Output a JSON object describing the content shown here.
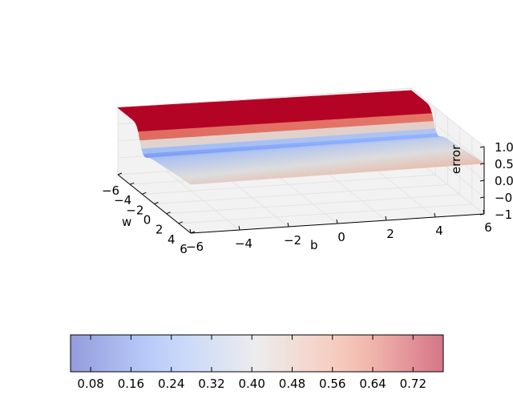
{
  "chart_data": {
    "type": "surface3d",
    "title": "",
    "xlabel": "w",
    "ylabel": "b",
    "zlabel": "error",
    "xlim": [
      -6,
      6
    ],
    "ylim": [
      -6,
      6
    ],
    "zlim": [
      -1.0,
      1.0
    ],
    "x_ticks": [
      "−6",
      "−4",
      "−2",
      "0",
      "2",
      "4",
      "6"
    ],
    "y_ticks": [
      "−6",
      "−4",
      "−2",
      "0",
      "2",
      "4",
      "6"
    ],
    "z_ticks": [
      "−1.0",
      "−0.5",
      "0.0",
      "0.5",
      "1.0"
    ],
    "colormap": "coolwarm",
    "colorbar": {
      "min": 0.04,
      "max": 0.78,
      "ticks": [
        "0.08",
        "0.16",
        "0.24",
        "0.32",
        "0.40",
        "0.48",
        "0.56",
        "0.64",
        "0.72"
      ],
      "tick_values": [
        0.08,
        0.16,
        0.24,
        0.32,
        0.4,
        0.48,
        0.56,
        0.64,
        0.72
      ]
    },
    "grid": true,
    "surface_description": "error surface over w and b: high plateau near 1.0 for negative w, valley minimum near 0.08 at w approx -1, rising to approx 0.45 plateau for positive w",
    "colors": {
      "low": "#3b4cc0",
      "mid": "#dddddd",
      "high": "#b40426",
      "pane": "#f2f2f2"
    }
  }
}
